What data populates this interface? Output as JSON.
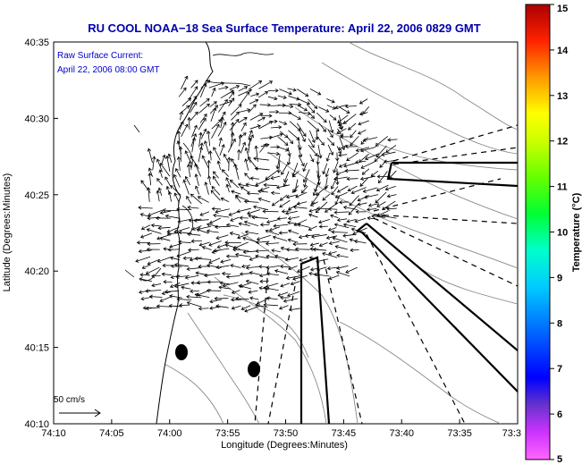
{
  "title": "RU COOL  NOAA−18  Sea Surface Temperature:  April 22, 2006 0829 GMT",
  "annotation": {
    "line1": "Raw Surface Current:",
    "line2": "April 22, 2006 08:00 GMT"
  },
  "scale_label": "50 cm/s",
  "axes": {
    "xlabel": "Longitude (Degrees:Minutes)",
    "ylabel": "Latitude (Degrees:Minutes)",
    "x_ticks": [
      "74:10",
      "74:05",
      "74:00",
      "73:55",
      "73:50",
      "73:45",
      "73:40",
      "73:35",
      "73:3"
    ],
    "y_ticks": [
      "40:35",
      "40:30",
      "40:25",
      "40:20",
      "40:15",
      "40:10"
    ]
  },
  "colorbar": {
    "label": "Temperature (°C)",
    "ticks": [
      "15",
      "14",
      "13",
      "12",
      "11",
      "10",
      "9",
      "8",
      "7",
      "6",
      "5"
    ]
  },
  "colors": {
    "title": "#0000aa",
    "annotation": "#0000cc",
    "land": "#ffffff",
    "lines": "#000000",
    "bathymetry": "#888888"
  }
}
